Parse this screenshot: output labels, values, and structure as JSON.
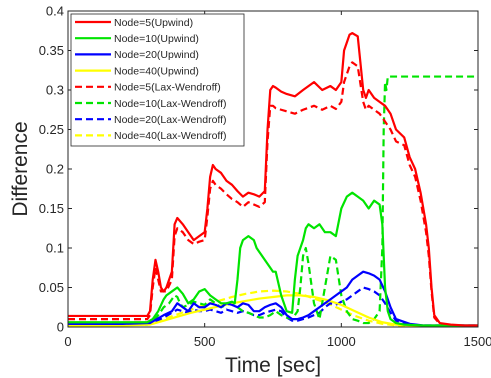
{
  "chart_data": {
    "type": "line",
    "title": "",
    "xlabel": "Time [sec]",
    "ylabel": "Difference",
    "xlim": [
      0,
      1500
    ],
    "ylim": [
      0,
      0.4
    ],
    "xticks": [
      0,
      500,
      1000,
      1500
    ],
    "xtick_labels": [
      "0",
      "500",
      "1000",
      "1500"
    ],
    "yticks": [
      0,
      0.05,
      0.1,
      0.15,
      0.2,
      0.25,
      0.3,
      0.35,
      0.4
    ],
    "ytick_labels": [
      "0",
      "0.05",
      "0.1",
      "0.15",
      "0.2",
      "0.25",
      "0.3",
      "0.35",
      "0.4"
    ],
    "grid": false,
    "legend_position": "top-left",
    "series": [
      {
        "name": "Node=5(Upwind)",
        "color": "#ff0000",
        "style": "solid",
        "x": [
          0,
          100,
          200,
          290,
          300,
          310,
          320,
          330,
          340,
          350,
          360,
          370,
          380,
          390,
          400,
          420,
          440,
          460,
          480,
          500,
          510,
          520,
          530,
          540,
          560,
          580,
          600,
          620,
          640,
          660,
          680,
          700,
          720,
          730,
          740,
          750,
          760,
          780,
          800,
          830,
          860,
          900,
          930,
          960,
          980,
          1000,
          1010,
          1020,
          1030,
          1040,
          1060,
          1080,
          1090,
          1100,
          1120,
          1140,
          1160,
          1180,
          1200,
          1230,
          1250,
          1270,
          1290,
          1310,
          1320,
          1330,
          1340,
          1360,
          1400,
          1450,
          1500
        ],
        "y": [
          0.014,
          0.014,
          0.014,
          0.014,
          0.02,
          0.06,
          0.085,
          0.07,
          0.05,
          0.045,
          0.05,
          0.06,
          0.07,
          0.13,
          0.138,
          0.13,
          0.12,
          0.11,
          0.115,
          0.12,
          0.15,
          0.19,
          0.205,
          0.2,
          0.195,
          0.185,
          0.18,
          0.172,
          0.165,
          0.17,
          0.168,
          0.165,
          0.172,
          0.25,
          0.3,
          0.305,
          0.303,
          0.298,
          0.295,
          0.292,
          0.3,
          0.31,
          0.3,
          0.305,
          0.3,
          0.31,
          0.35,
          0.36,
          0.37,
          0.372,
          0.368,
          0.3,
          0.29,
          0.3,
          0.29,
          0.285,
          0.28,
          0.27,
          0.25,
          0.24,
          0.215,
          0.2,
          0.17,
          0.13,
          0.1,
          0.05,
          0.015,
          0.005,
          0.003,
          0.002,
          0.002
        ]
      },
      {
        "name": "Node=10(Upwind)",
        "color": "#00e400",
        "style": "solid",
        "x": [
          0,
          100,
          200,
          290,
          310,
          330,
          350,
          360,
          380,
          400,
          420,
          440,
          460,
          480,
          500,
          520,
          540,
          560,
          580,
          600,
          610,
          620,
          630,
          640,
          660,
          680,
          690,
          700,
          720,
          740,
          750,
          760,
          780,
          800,
          820,
          830,
          840,
          850,
          860,
          870,
          880,
          900,
          920,
          940,
          960,
          980,
          1000,
          1020,
          1040,
          1060,
          1080,
          1100,
          1120,
          1140,
          1150,
          1160,
          1170,
          1180,
          1200,
          1230,
          1300,
          1400,
          1500
        ],
        "y": [
          0.006,
          0.006,
          0.006,
          0.006,
          0.01,
          0.02,
          0.035,
          0.04,
          0.045,
          0.05,
          0.042,
          0.03,
          0.035,
          0.045,
          0.048,
          0.04,
          0.035,
          0.03,
          0.03,
          0.032,
          0.03,
          0.06,
          0.1,
          0.11,
          0.115,
          0.11,
          0.1,
          0.095,
          0.085,
          0.075,
          0.07,
          0.07,
          0.04,
          0.02,
          0.018,
          0.06,
          0.09,
          0.1,
          0.11,
          0.125,
          0.13,
          0.125,
          0.13,
          0.12,
          0.12,
          0.115,
          0.15,
          0.165,
          0.17,
          0.165,
          0.16,
          0.15,
          0.16,
          0.155,
          0.13,
          0.05,
          0.02,
          0.01,
          0.005,
          0.003,
          0.002,
          0.002,
          0.002
        ]
      },
      {
        "name": "Node=20(Upwind)",
        "color": "#0000ff",
        "style": "solid",
        "x": [
          0,
          100,
          200,
          300,
          350,
          380,
          400,
          420,
          440,
          460,
          480,
          500,
          520,
          540,
          560,
          580,
          600,
          620,
          640,
          660,
          680,
          700,
          720,
          740,
          760,
          780,
          800,
          820,
          840,
          860,
          880,
          900,
          920,
          940,
          960,
          980,
          1000,
          1020,
          1040,
          1060,
          1080,
          1100,
          1120,
          1140,
          1160,
          1180,
          1200,
          1250,
          1300,
          1400,
          1500
        ],
        "y": [
          0.004,
          0.004,
          0.004,
          0.005,
          0.015,
          0.02,
          0.03,
          0.025,
          0.02,
          0.03,
          0.025,
          0.025,
          0.03,
          0.028,
          0.025,
          0.03,
          0.028,
          0.025,
          0.03,
          0.028,
          0.02,
          0.02,
          0.025,
          0.028,
          0.03,
          0.025,
          0.015,
          0.01,
          0.01,
          0.012,
          0.015,
          0.02,
          0.025,
          0.03,
          0.035,
          0.04,
          0.045,
          0.05,
          0.06,
          0.065,
          0.07,
          0.068,
          0.065,
          0.06,
          0.045,
          0.025,
          0.01,
          0.004,
          0.002,
          0.002,
          0.002
        ]
      },
      {
        "name": "Node=40(Upwind)",
        "color": "#ffff00",
        "style": "solid",
        "x": [
          0,
          100,
          200,
          300,
          350,
          400,
          450,
          500,
          550,
          600,
          650,
          700,
          750,
          800,
          850,
          900,
          950,
          1000,
          1050,
          1100,
          1150,
          1200,
          1250,
          1300,
          1400,
          1500
        ],
        "y": [
          0.002,
          0.002,
          0.002,
          0.003,
          0.008,
          0.013,
          0.018,
          0.022,
          0.026,
          0.03,
          0.033,
          0.036,
          0.038,
          0.04,
          0.04,
          0.038,
          0.034,
          0.028,
          0.02,
          0.012,
          0.006,
          0.003,
          0.002,
          0.001,
          0.001,
          0.001
        ]
      },
      {
        "name": "Node=5(Lax-Wendroff)",
        "color": "#ff0000",
        "style": "dashed",
        "x": [
          0,
          100,
          200,
          290,
          300,
          310,
          320,
          330,
          340,
          360,
          380,
          390,
          400,
          420,
          440,
          460,
          480,
          500,
          510,
          520,
          530,
          540,
          560,
          580,
          600,
          620,
          640,
          660,
          680,
          700,
          720,
          730,
          740,
          750,
          760,
          780,
          800,
          830,
          860,
          900,
          930,
          960,
          980,
          1000,
          1010,
          1020,
          1030,
          1040,
          1060,
          1080,
          1090,
          1100,
          1120,
          1140,
          1160,
          1180,
          1200,
          1230,
          1250,
          1270,
          1290,
          1310,
          1320,
          1330,
          1340,
          1360,
          1400,
          1450,
          1500
        ],
        "y": [
          0.01,
          0.01,
          0.01,
          0.01,
          0.015,
          0.05,
          0.075,
          0.06,
          0.045,
          0.045,
          0.06,
          0.115,
          0.125,
          0.12,
          0.11,
          0.105,
          0.108,
          0.11,
          0.14,
          0.175,
          0.185,
          0.18,
          0.175,
          0.168,
          0.162,
          0.158,
          0.152,
          0.158,
          0.155,
          0.152,
          0.158,
          0.235,
          0.28,
          0.28,
          0.277,
          0.275,
          0.273,
          0.27,
          0.275,
          0.28,
          0.275,
          0.28,
          0.276,
          0.285,
          0.31,
          0.32,
          0.33,
          0.335,
          0.33,
          0.285,
          0.275,
          0.28,
          0.275,
          0.27,
          0.26,
          0.25,
          0.235,
          0.23,
          0.205,
          0.19,
          0.16,
          0.12,
          0.09,
          0.045,
          0.012,
          0.004,
          0.002,
          0.001,
          0.001
        ]
      },
      {
        "name": "Node=10(Lax-Wendroff)",
        "color": "#00e400",
        "style": "dashed",
        "x": [
          0,
          100,
          200,
          290,
          310,
          330,
          350,
          370,
          390,
          400,
          410,
          420,
          440,
          460,
          480,
          500,
          520,
          540,
          560,
          580,
          600,
          620,
          640,
          660,
          680,
          700,
          720,
          740,
          760,
          780,
          800,
          820,
          840,
          850,
          860,
          870,
          880,
          900,
          920,
          940,
          960,
          980,
          1000,
          1020,
          1040,
          1060,
          1080,
          1100,
          1120,
          1140,
          1150,
          1155,
          1160,
          1165,
          1170,
          1180,
          1200,
          1300,
          1400,
          1500
        ],
        "y": [
          0.003,
          0.003,
          0.003,
          0.003,
          0.006,
          0.015,
          0.025,
          0.03,
          0.04,
          0.038,
          0.03,
          0.025,
          0.028,
          0.032,
          0.03,
          0.028,
          0.035,
          0.03,
          0.025,
          0.028,
          0.03,
          0.025,
          0.02,
          0.018,
          0.015,
          0.012,
          0.012,
          0.015,
          0.02,
          0.015,
          0.012,
          0.01,
          0.02,
          0.05,
          0.09,
          0.1,
          0.08,
          0.03,
          0.01,
          0.05,
          0.09,
          0.085,
          0.04,
          0.02,
          0.01,
          0.008,
          0.005,
          0.005,
          0.01,
          0.02,
          0.1,
          0.25,
          0.31,
          0.3,
          0.317,
          0.317,
          0.317,
          0.317,
          0.317,
          0.317
        ]
      },
      {
        "name": "Node=20(Lax-Wendroff)",
        "color": "#0000ff",
        "style": "dashed",
        "x": [
          0,
          100,
          200,
          300,
          350,
          380,
          400,
          420,
          440,
          460,
          480,
          500,
          520,
          540,
          560,
          580,
          600,
          620,
          640,
          660,
          680,
          700,
          720,
          740,
          760,
          780,
          800,
          820,
          840,
          860,
          880,
          900,
          920,
          940,
          960,
          980,
          1000,
          1020,
          1040,
          1060,
          1080,
          1100,
          1120,
          1140,
          1160,
          1180,
          1200,
          1250,
          1300,
          1400,
          1500
        ],
        "y": [
          0.003,
          0.003,
          0.003,
          0.004,
          0.012,
          0.018,
          0.022,
          0.02,
          0.018,
          0.022,
          0.02,
          0.02,
          0.022,
          0.02,
          0.018,
          0.022,
          0.02,
          0.018,
          0.02,
          0.018,
          0.015,
          0.015,
          0.018,
          0.02,
          0.022,
          0.02,
          0.012,
          0.008,
          0.008,
          0.01,
          0.012,
          0.015,
          0.018,
          0.025,
          0.03,
          0.028,
          0.032,
          0.035,
          0.04,
          0.045,
          0.05,
          0.048,
          0.045,
          0.04,
          0.03,
          0.018,
          0.008,
          0.003,
          0.002,
          0.002,
          0.002
        ]
      },
      {
        "name": "Node=40(Lax-Wendroff)",
        "color": "#ffff00",
        "style": "dashed",
        "x": [
          0,
          100,
          200,
          300,
          350,
          400,
          450,
          500,
          550,
          600,
          650,
          700,
          750,
          800,
          850,
          900,
          950,
          1000,
          1050,
          1100,
          1150,
          1200,
          1250,
          1300,
          1400,
          1500
        ],
        "y": [
          0.002,
          0.002,
          0.002,
          0.004,
          0.01,
          0.016,
          0.022,
          0.028,
          0.033,
          0.038,
          0.042,
          0.045,
          0.046,
          0.045,
          0.042,
          0.036,
          0.03,
          0.022,
          0.014,
          0.008,
          0.004,
          0.002,
          0.001,
          0.001,
          0.001,
          0.001
        ]
      }
    ]
  }
}
